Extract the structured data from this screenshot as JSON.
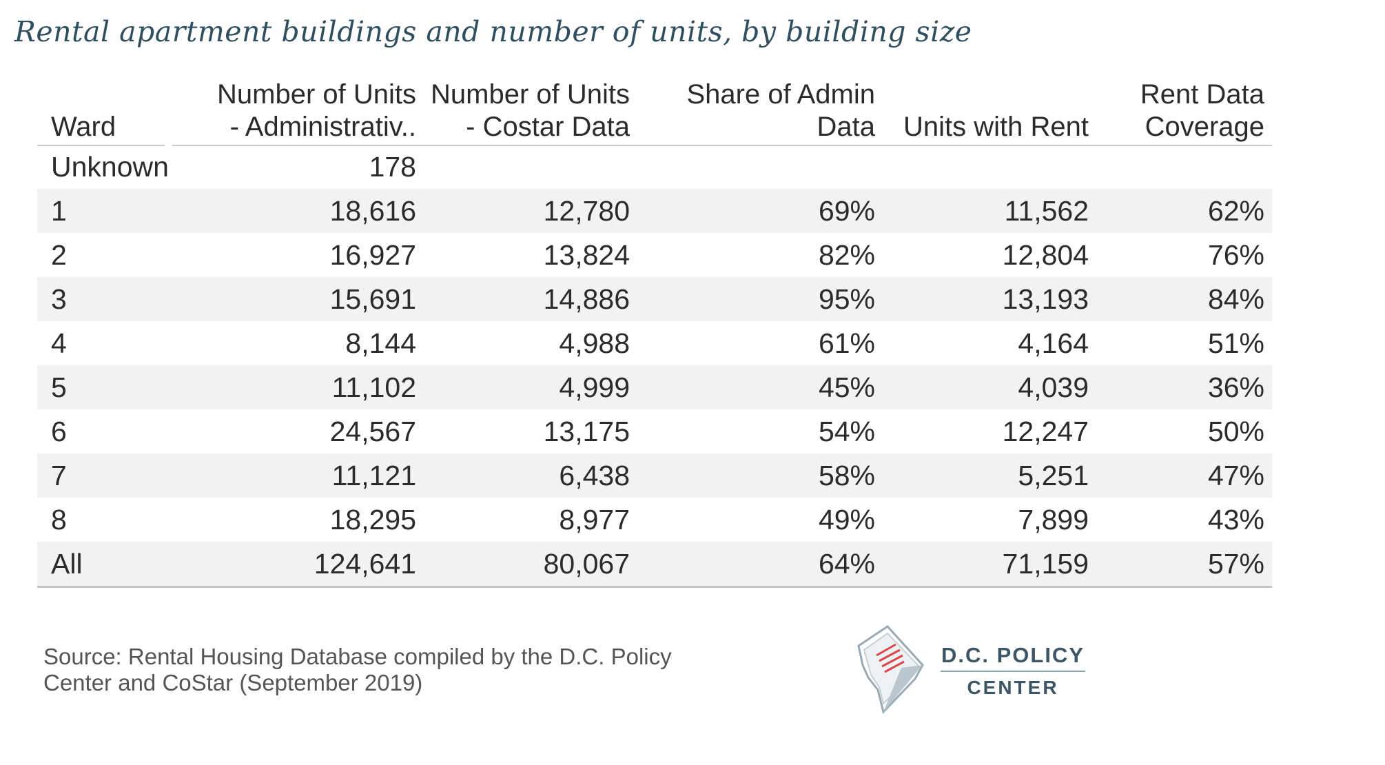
{
  "title": "Rental apartment buildings and number of units, by building size",
  "chart_data": {
    "type": "table",
    "columns": [
      {
        "label": "Ward",
        "align": "left"
      },
      {
        "label": "Number of Units - Administrativ..",
        "align": "right"
      },
      {
        "label": "Number of Units - Costar Data",
        "align": "right"
      },
      {
        "label": "Share of Admin Data",
        "align": "right"
      },
      {
        "label": "Units with Rent",
        "align": "right"
      },
      {
        "label": "Rent Data Coverage",
        "align": "right"
      }
    ],
    "header_lines": [
      [
        "Ward"
      ],
      [
        "Number of Units",
        "- Administrativ.."
      ],
      [
        "Number of Units",
        "- Costar Data"
      ],
      [
        "Share of Admin",
        "Data"
      ],
      [
        "Units with Rent"
      ],
      [
        "Rent Data",
        "Coverage"
      ]
    ],
    "rows": [
      [
        "Unknown",
        "178",
        "",
        "",
        "",
        ""
      ],
      [
        "1",
        "18,616",
        "12,780",
        "69%",
        "11,562",
        "62%"
      ],
      [
        "2",
        "16,927",
        "13,824",
        "82%",
        "12,804",
        "76%"
      ],
      [
        "3",
        "15,691",
        "14,886",
        "95%",
        "13,193",
        "84%"
      ],
      [
        "4",
        "8,144",
        "4,988",
        "61%",
        "4,164",
        "51%"
      ],
      [
        "5",
        "11,102",
        "4,999",
        "45%",
        "4,039",
        "36%"
      ],
      [
        "6",
        "24,567",
        "13,175",
        "54%",
        "12,247",
        "50%"
      ],
      [
        "7",
        "11,121",
        "6,438",
        "58%",
        "5,251",
        "47%"
      ],
      [
        "8",
        "18,295",
        "8,977",
        "49%",
        "7,899",
        "43%"
      ],
      [
        "All",
        "124,641",
        "80,067",
        "64%",
        "71,159",
        "57%"
      ]
    ]
  },
  "source_line1": "Source: Rental Housing Database compiled by the D.C. Policy",
  "source_line2": "Center and CoStar (September 2019)",
  "logo": {
    "line1": "D.C. POLICY",
    "line2": "CENTER"
  },
  "colors": {
    "title": "#2f4e5e",
    "row_shade": "#f2f2f2",
    "logo_text": "#3c5665",
    "logo_accent": "#d9474b"
  }
}
